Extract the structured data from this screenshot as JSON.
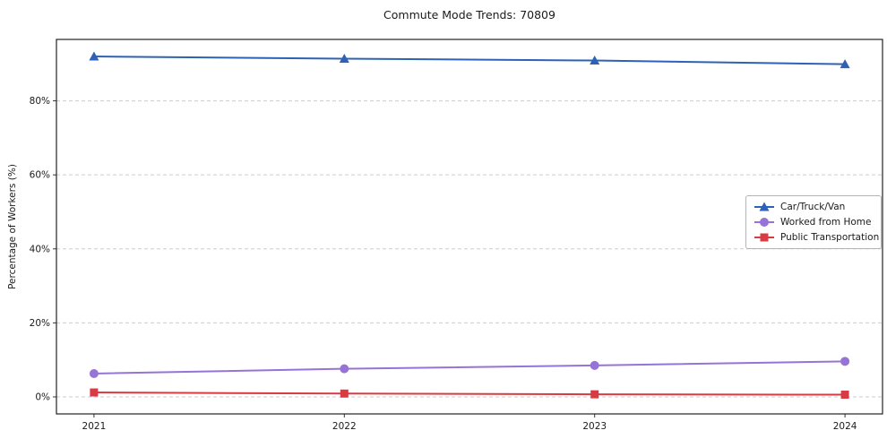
{
  "chart_data": {
    "type": "line",
    "title": "Commute Mode Trends: 70809",
    "ylabel": "Percentage of Workers (%)",
    "xlabel": "",
    "categories": [
      2021,
      2022,
      2023,
      2024
    ],
    "series": [
      {
        "name": "Car/Truck/Van",
        "color": "#2d62b5",
        "marker": "triangle",
        "values": [
          92.0,
          91.4,
          90.9,
          89.9
        ]
      },
      {
        "name": "Worked from Home",
        "color": "#9673d6",
        "marker": "circle",
        "values": [
          6.3,
          7.6,
          8.5,
          9.6
        ]
      },
      {
        "name": "Public Transportation",
        "color": "#d93b43",
        "marker": "square",
        "values": [
          1.2,
          0.9,
          0.7,
          0.6
        ]
      }
    ],
    "yticks": [
      0,
      20,
      40,
      60,
      80
    ],
    "ytick_suffix": "%",
    "ylim": [
      -4.6,
      96.6
    ],
    "xlim": [
      2020.85,
      2024.15
    ],
    "grid": "horizontal-dashed",
    "legend_position": "center-right"
  }
}
